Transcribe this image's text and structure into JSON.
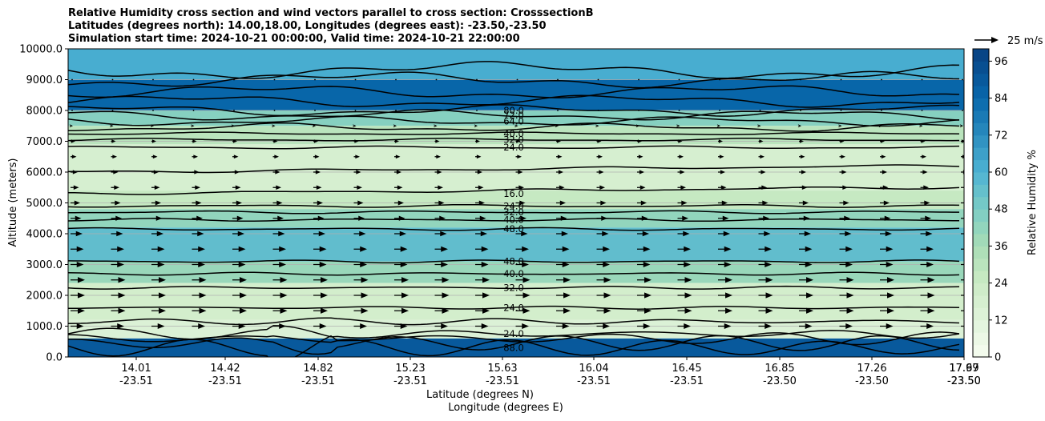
{
  "chart_data": {
    "type": "contour",
    "title_lines": [
      "Relative Humidity cross section and wind vectors parallel to cross section: CrosssectionB",
      "Latitudes (degrees north): 14.00,18.00, Longitudes (degrees east): -23.50,-23.50",
      "Simulation start time: 2024-10-21 00:00:00, Valid time: 2024-10-21 22:00:00"
    ],
    "ylabel": "Altitude (meters)",
    "xlabel": "Latitude (degrees N)",
    "xlabel2": "Longitude (degrees E)",
    "ylim": [
      0,
      10000
    ],
    "yticks": [
      "0.0",
      "1000.0",
      "2000.0",
      "3000.0",
      "4000.0",
      "5000.0",
      "6000.0",
      "7000.0",
      "8000.0",
      "9000.0",
      "10000.0"
    ],
    "xticks_lat": [
      "14.01",
      "14.42",
      "14.82",
      "15.23",
      "15.63",
      "16.04",
      "16.45",
      "16.85",
      "17.26",
      "17.67",
      "17.99"
    ],
    "xticks_lon": [
      "-23.51",
      "-23.51",
      "-23.51",
      "-23.51",
      "-23.51",
      "-23.51",
      "-23.51",
      "-23.50",
      "-23.50",
      "-23.50",
      "-23.50"
    ],
    "grid_y": true,
    "colorbar": {
      "label": "Relative Humidity %",
      "ticks": [
        "0",
        "12",
        "24",
        "36",
        "48",
        "60",
        "72",
        "84",
        "96"
      ],
      "range": [
        0,
        100
      ]
    },
    "quiver_key": "25 m/s",
    "contour_labels_center": [
      {
        "alt": 8000,
        "text": "80.0"
      },
      {
        "alt": 7850,
        "text": "72.0"
      },
      {
        "alt": 7650,
        "text": "64.0"
      },
      {
        "alt": 7250,
        "text": "40.0"
      },
      {
        "alt": 7050,
        "text": "32.0"
      },
      {
        "alt": 6800,
        "text": "24.0"
      },
      {
        "alt": 5300,
        "text": "16.0"
      },
      {
        "alt": 4900,
        "text": "24.0"
      },
      {
        "alt": 4700,
        "text": "32.0"
      },
      {
        "alt": 4450,
        "text": "40.0"
      },
      {
        "alt": 4150,
        "text": "48.0"
      },
      {
        "alt": 3100,
        "text": "48.0"
      },
      {
        "alt": 2700,
        "text": "40.0"
      },
      {
        "alt": 2250,
        "text": "32.0"
      },
      {
        "alt": 1600,
        "text": "24.0"
      },
      {
        "alt": 750,
        "text": "24.0"
      },
      {
        "alt": 300,
        "text": "88.0"
      }
    ],
    "humidity_bands": [
      {
        "from": 9000,
        "to": 10000,
        "rh": 62
      },
      {
        "from": 8000,
        "to": 9000,
        "rh": 85
      },
      {
        "from": 7500,
        "to": 8000,
        "rh": 45
      },
      {
        "from": 6900,
        "to": 7500,
        "rh": 30
      },
      {
        "from": 5400,
        "to": 6900,
        "rh": 18
      },
      {
        "from": 4800,
        "to": 5400,
        "rh": 26
      },
      {
        "from": 4200,
        "to": 4800,
        "rh": 42
      },
      {
        "from": 3100,
        "to": 4200,
        "rh": 55
      },
      {
        "from": 2400,
        "to": 3100,
        "rh": 40
      },
      {
        "from": 1200,
        "to": 2400,
        "rh": 20
      },
      {
        "from": 600,
        "to": 1200,
        "rh": 15
      },
      {
        "from": 0,
        "to": 600,
        "rh": 90
      }
    ],
    "wind_rows": [
      {
        "alt": 9000,
        "u": 0
      },
      {
        "alt": 8000,
        "u": 0
      },
      {
        "alt": 7500,
        "u": 2
      },
      {
        "alt": 7000,
        "u": 4
      },
      {
        "alt": 6500,
        "u": 5
      },
      {
        "alt": 6000,
        "u": 6
      },
      {
        "alt": 5500,
        "u": 7
      },
      {
        "alt": 5000,
        "u": 8
      },
      {
        "alt": 4500,
        "u": 9
      },
      {
        "alt": 4000,
        "u": 10
      },
      {
        "alt": 3500,
        "u": 11
      },
      {
        "alt": 3000,
        "u": 11
      },
      {
        "alt": 2500,
        "u": 12
      },
      {
        "alt": 2000,
        "u": 12
      },
      {
        "alt": 1500,
        "u": 12
      },
      {
        "alt": 1000,
        "u": 11
      }
    ]
  }
}
